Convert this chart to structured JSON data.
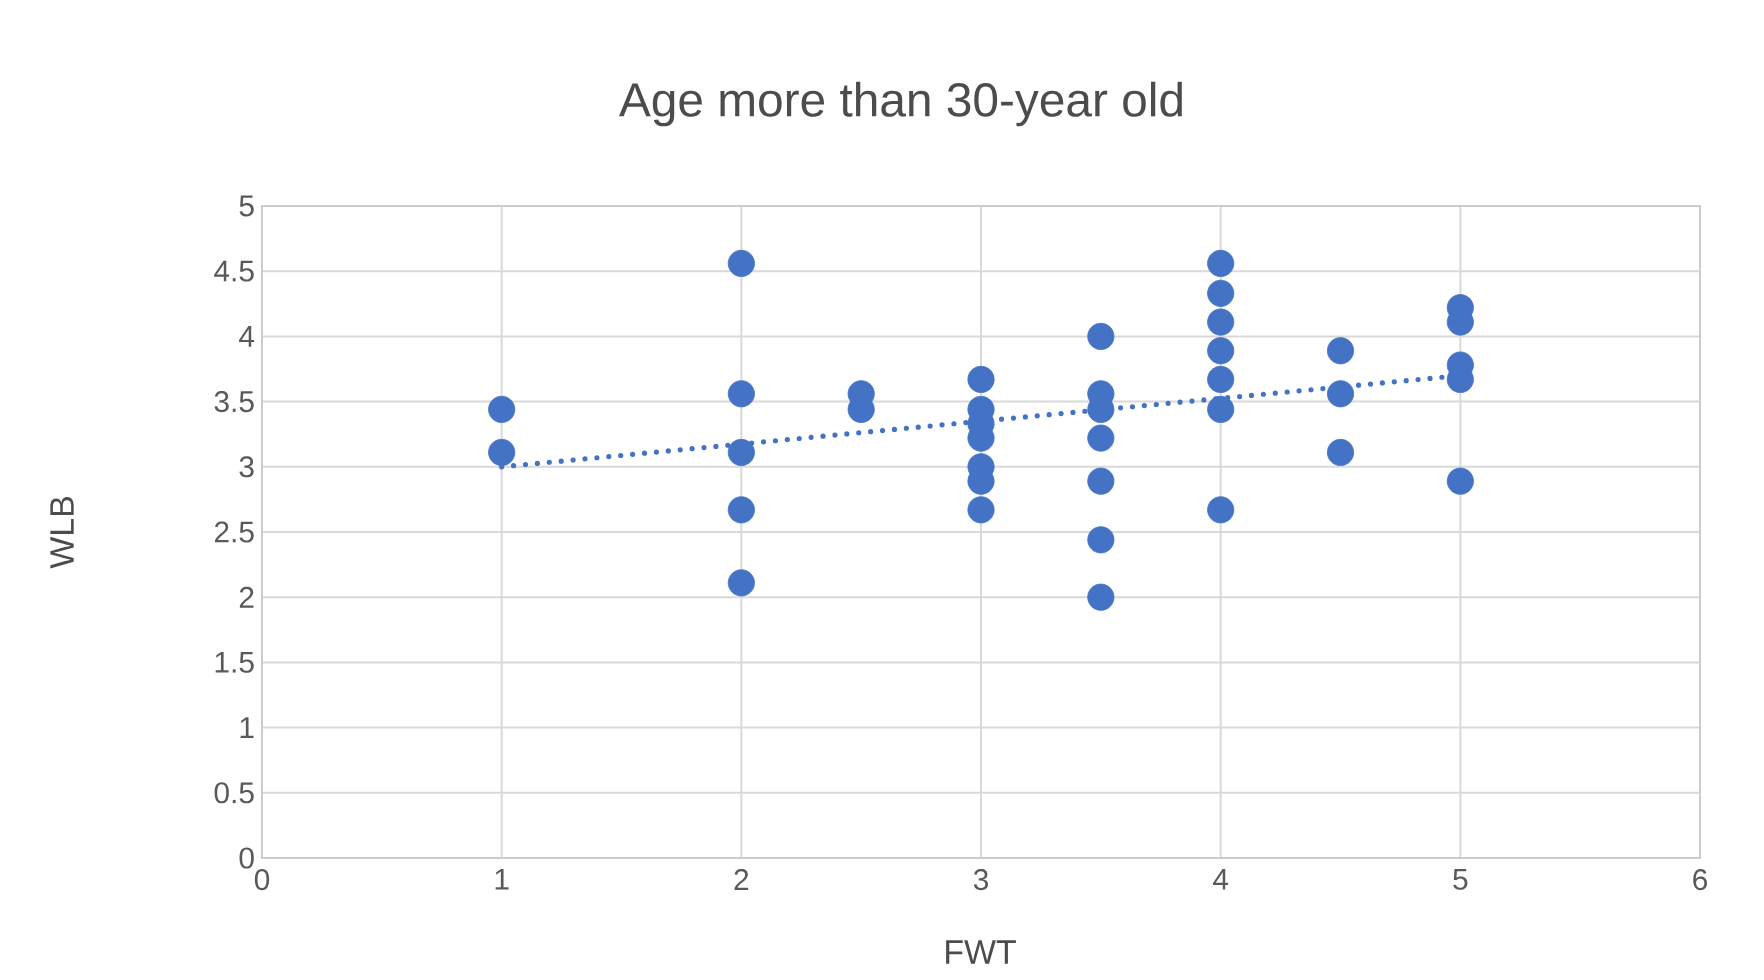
{
  "chart_data": {
    "type": "scatter",
    "title": "Age more than 30-year old",
    "xlabel": "FWT",
    "ylabel": "WLB",
    "xlim": [
      0,
      6
    ],
    "xticks": [
      0,
      1,
      2,
      3,
      4,
      5,
      6
    ],
    "ylim": [
      0,
      5
    ],
    "yticks": [
      0,
      0.5,
      1,
      1.5,
      2,
      2.5,
      3,
      3.5,
      4,
      4.5,
      5
    ],
    "grid": true,
    "marker": "circle",
    "series": [
      {
        "color": "#4472c4",
        "x": [
          1,
          1,
          2,
          2,
          2,
          2,
          2,
          2.5,
          2.5,
          3,
          3,
          3,
          3,
          3,
          3,
          3,
          3.5,
          3.5,
          3.5,
          3.5,
          3.5,
          3.5,
          3.5,
          4,
          4,
          4,
          4,
          4,
          4,
          4,
          4.5,
          4.5,
          4.5,
          5,
          5,
          5,
          5,
          5
        ],
        "values": [
          3.44,
          3.11,
          4.56,
          3.56,
          3.11,
          2.67,
          2.11,
          3.56,
          3.44,
          3.67,
          3.44,
          3.33,
          3.22,
          3.0,
          2.89,
          2.67,
          4.0,
          3.56,
          3.44,
          3.22,
          2.89,
          2.44,
          2.0,
          4.56,
          4.33,
          4.11,
          3.89,
          3.67,
          3.44,
          2.67,
          3.89,
          3.56,
          3.11,
          4.22,
          4.11,
          3.78,
          3.67,
          2.89
        ]
      },
      {
        "type": "line",
        "color": "#4472c4",
        "marker": "none",
        "line_style": "dotted",
        "x": [
          1,
          5
        ],
        "values": [
          3.0,
          3.7
        ]
      }
    ]
  }
}
